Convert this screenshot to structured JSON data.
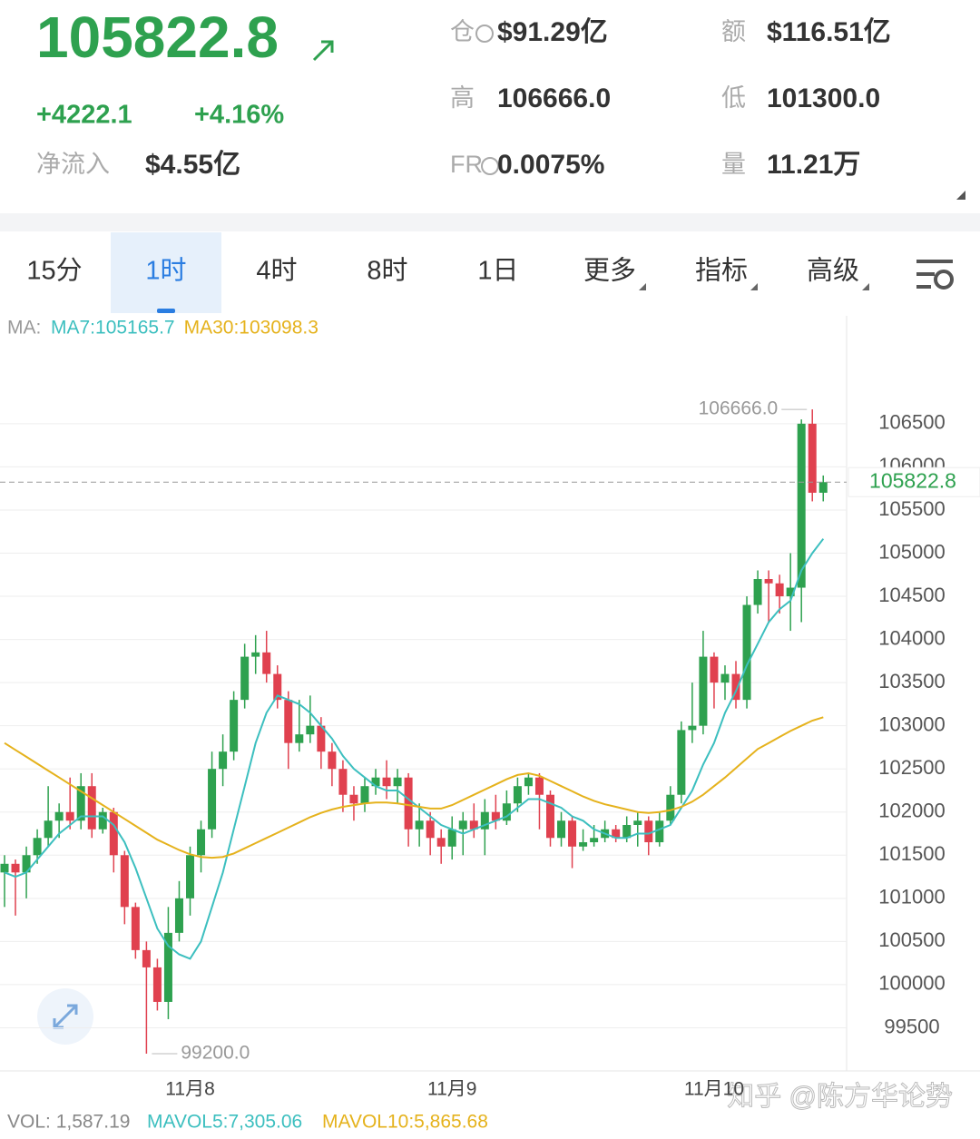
{
  "header": {
    "price": "105822.8",
    "change": "+4222.1",
    "change_pct": "+4.16%",
    "net_inflow_label": "净流入",
    "net_inflow": "$4.55亿",
    "stats": [
      {
        "label": "仓",
        "value": "$91.29亿"
      },
      {
        "label": "额",
        "value": "$116.51亿"
      },
      {
        "label": "高",
        "value": "106666.0"
      },
      {
        "label": "低",
        "value": "101300.0"
      },
      {
        "label": "FR",
        "value": "0.0075%"
      },
      {
        "label": "量",
        "value": "11.21万"
      }
    ]
  },
  "tabs": [
    "15分",
    "1时",
    "4时",
    "8时",
    "1日",
    "更多",
    "指标",
    "高级"
  ],
  "chart_data": {
    "type": "candlestick",
    "ma_label": "MA:",
    "up_color": "#2ea14f",
    "down_color": "#e0414f",
    "categories": [
      null,
      null,
      null,
      null,
      null,
      null,
      null,
      null,
      null,
      null,
      null,
      null,
      null,
      null,
      null,
      null,
      null,
      "11月8",
      null,
      null,
      null,
      null,
      null,
      null,
      null,
      null,
      null,
      null,
      null,
      null,
      null,
      null,
      null,
      null,
      null,
      null,
      null,
      null,
      null,
      null,
      null,
      "11月9",
      null,
      null,
      null,
      null,
      null,
      null,
      null,
      null,
      null,
      null,
      null,
      null,
      null,
      null,
      null,
      null,
      null,
      null,
      null,
      null,
      null,
      null,
      null,
      "11月10",
      null,
      null,
      null,
      null,
      null,
      null,
      null,
      null,
      null,
      null
    ],
    "open": [
      101300,
      101400,
      101300,
      101500,
      101700,
      101900,
      102000,
      101900,
      102300,
      101800,
      102000,
      101500,
      100900,
      100400,
      100200,
      99800,
      100600,
      101000,
      101500,
      101800,
      102500,
      102700,
      103300,
      103800,
      103850,
      103600,
      103300,
      102800,
      102900,
      103000,
      102700,
      102500,
      102200,
      102100,
      102300,
      102400,
      102300,
      102400,
      101800,
      101900,
      101700,
      101600,
      101800,
      101900,
      101800,
      102000,
      101900,
      102100,
      102300,
      102400,
      102200,
      101700,
      101900,
      101600,
      101650,
      101700,
      101800,
      101700,
      101850,
      101900,
      101650,
      101900,
      102200,
      102950,
      103000,
      103800,
      103500,
      103600,
      103300,
      104400,
      104700,
      104650,
      104500,
      104600,
      106500,
      105700
    ],
    "high": [
      101500,
      101450,
      101600,
      101800,
      102300,
      102100,
      102400,
      102450,
      102450,
      102050,
      102050,
      101550,
      100950,
      100500,
      100300,
      100900,
      101200,
      101600,
      101900,
      102700,
      102900,
      103400,
      103950,
      104050,
      104100,
      103700,
      103400,
      103300,
      103350,
      103100,
      102800,
      102600,
      102300,
      102400,
      102500,
      102600,
      102500,
      102450,
      102100,
      102000,
      101800,
      101950,
      102000,
      102100,
      102150,
      102200,
      102250,
      102400,
      102450,
      102450,
      102250,
      102000,
      101950,
      101800,
      101850,
      101900,
      101850,
      101950,
      102000,
      101950,
      102000,
      102300,
      103050,
      103500,
      104100,
      103850,
      103700,
      103750,
      104500,
      104800,
      104800,
      104750,
      105000,
      106550,
      106666,
      105900
    ],
    "low": [
      100900,
      100800,
      101000,
      101400,
      101600,
      101700,
      101800,
      101800,
      101700,
      101750,
      101300,
      100700,
      100300,
      99200,
      99700,
      99600,
      100500,
      100800,
      101300,
      101700,
      102300,
      102600,
      103200,
      103600,
      103500,
      103200,
      102500,
      102700,
      102800,
      102500,
      102300,
      102000,
      101900,
      102000,
      102200,
      102150,
      102100,
      101600,
      101600,
      101500,
      101400,
      101450,
      101500,
      101700,
      101500,
      101800,
      101850,
      102000,
      102200,
      101800,
      101600,
      101600,
      101350,
      101550,
      101600,
      101650,
      101650,
      101650,
      101600,
      101500,
      101600,
      101850,
      102100,
      102800,
      102900,
      103200,
      103300,
      103200,
      103200,
      104300,
      104200,
      104300,
      104100,
      104200,
      105600,
      105600
    ],
    "close": [
      101400,
      101300,
      101500,
      101700,
      101900,
      102000,
      101900,
      102300,
      101800,
      102000,
      101500,
      100900,
      100400,
      100200,
      99800,
      100600,
      101000,
      101500,
      101800,
      102500,
      102700,
      103300,
      103800,
      103850,
      103600,
      103300,
      102800,
      102900,
      103000,
      102700,
      102500,
      102200,
      102100,
      102300,
      102400,
      102300,
      102400,
      101800,
      101900,
      101700,
      101600,
      101800,
      101900,
      101800,
      102000,
      101900,
      102100,
      102300,
      102400,
      102200,
      101700,
      101900,
      101600,
      101650,
      101700,
      101800,
      101700,
      101850,
      101900,
      101650,
      101900,
      102200,
      102950,
      103000,
      103800,
      103500,
      103600,
      103300,
      104400,
      104700,
      104650,
      104500,
      104600,
      106500,
      105700,
      105822.8
    ],
    "ma_lines": [
      {
        "label": "MA7:105165.7",
        "color": "#3cbfbf",
        "values": [
          101300,
          101250,
          101300,
          101450,
          101600,
          101750,
          101850,
          101950,
          101950,
          101950,
          101850,
          101650,
          101350,
          101000,
          100650,
          100450,
          100350,
          100300,
          100500,
          100900,
          101300,
          101800,
          102300,
          102800,
          103150,
          103350,
          103300,
          103250,
          103150,
          103000,
          102850,
          102650,
          102500,
          102400,
          102300,
          102250,
          102250,
          102150,
          102050,
          101950,
          101850,
          101800,
          101750,
          101800,
          101850,
          101900,
          101950,
          102050,
          102150,
          102150,
          102100,
          102050,
          101950,
          101900,
          101800,
          101750,
          101700,
          101700,
          101750,
          101750,
          101800,
          101850,
          102050,
          102250,
          102550,
          102800,
          103150,
          103400,
          103700,
          103950,
          104200,
          104350,
          104450,
          104800,
          105000,
          105165.7
        ]
      },
      {
        "label": "MA30:103098.3",
        "color": "#e5b21c",
        "values": [
          102800,
          102720,
          102640,
          102560,
          102480,
          102400,
          102320,
          102240,
          102160,
          102080,
          102000,
          101920,
          101840,
          101760,
          101680,
          101620,
          101560,
          101510,
          101480,
          101470,
          101480,
          101520,
          101580,
          101640,
          101700,
          101760,
          101820,
          101880,
          101940,
          101990,
          102030,
          102060,
          102080,
          102100,
          102110,
          102110,
          102100,
          102080,
          102060,
          102040,
          102040,
          102080,
          102140,
          102200,
          102260,
          102320,
          102380,
          102430,
          102450,
          102420,
          102360,
          102300,
          102240,
          102180,
          102130,
          102090,
          102060,
          102030,
          102000,
          101990,
          102000,
          102020,
          102060,
          102120,
          102200,
          102300,
          102400,
          102510,
          102620,
          102730,
          102800,
          102870,
          102940,
          103000,
          103060,
          103098.3
        ]
      }
    ],
    "ylim": [
      99000,
      107750
    ],
    "yticks": [
      99500,
      100000,
      100500,
      101000,
      101500,
      102000,
      102500,
      103000,
      103500,
      104000,
      104500,
      105000,
      105500,
      106000,
      106500
    ],
    "grid": true,
    "last_price": {
      "value": 105822.8,
      "label": "105822.8"
    },
    "annotations": [
      {
        "kind": "high",
        "value": 106666,
        "label": "106666.0"
      },
      {
        "kind": "low",
        "value": 99200,
        "label": "99200.0"
      }
    ]
  },
  "footer": {
    "vol": "VOL: 1,587.19",
    "mavol5": "MAVOL5:7,305.06",
    "mavol10": "MAVOL10:5,865.68",
    "watermark": "知乎 @陈方华论势"
  }
}
